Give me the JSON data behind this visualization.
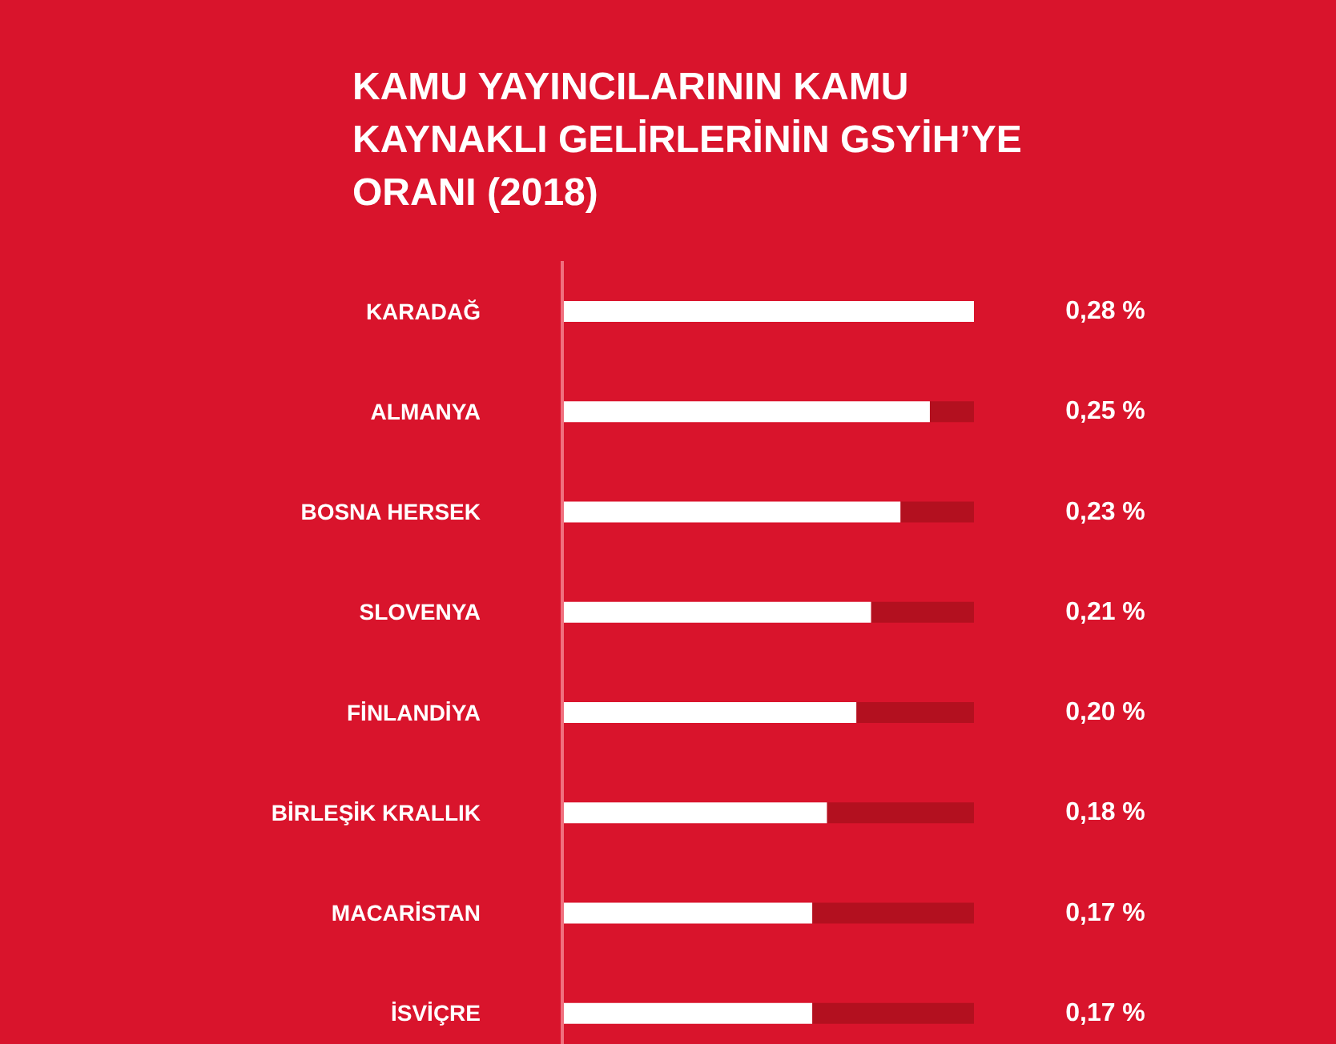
{
  "chart_data": {
    "type": "bar",
    "orientation": "horizontal",
    "title": "KAMU YAYINCILARININ KAMU KAYNAKLI GELİRLERİNİN GSYİH’YE ORANI (2018)",
    "categories": [
      "KARADAĞ",
      "ALMANYA",
      "BOSNA HERSEK",
      "SLOVENYA",
      "FİNLANDİYA",
      "BİRLEŞİK KRALLIK",
      "MACARİSTAN",
      "İSVİÇRE"
    ],
    "values": [
      0.28,
      0.25,
      0.23,
      0.21,
      0.2,
      0.18,
      0.17,
      0.17
    ],
    "value_labels": [
      "0,28 %",
      "0,25 %",
      "0,23 %",
      "0,21 %",
      "0,20 %",
      "0,18 %",
      "0,17 %",
      "0,17 %"
    ],
    "color": "#ffffff",
    "xlim": [
      0,
      0.28
    ],
    "grid": false,
    "legend": false
  }
}
